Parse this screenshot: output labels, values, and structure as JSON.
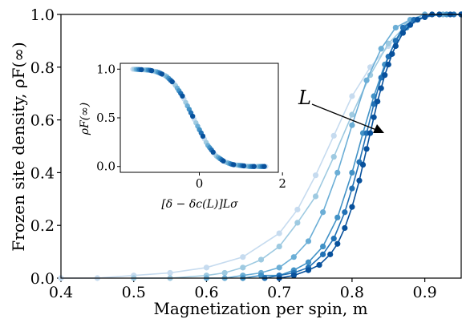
{
  "chart_data": [
    {
      "type": "line",
      "role": "main",
      "xlabel": "Magnetization per spin, m",
      "ylabel": "Frozen site density, ρF(∞)",
      "xlim": [
        0.4,
        0.95
      ],
      "ylim": [
        0.0,
        1.0
      ],
      "x_ticks": [
        "0.4",
        "0.5",
        "0.6",
        "0.7",
        "0.8",
        "0.9"
      ],
      "y_ticks": [
        "0.0",
        "0.2",
        "0.4",
        "0.6",
        "0.8",
        "1.0"
      ],
      "annotation": "L",
      "grid": false,
      "legend": "none",
      "series": [
        {
          "color": "#c6dbef",
          "x": [
            0.4,
            0.45,
            0.5,
            0.55,
            0.6,
            0.65,
            0.7,
            0.725,
            0.75,
            0.775,
            0.8,
            0.825,
            0.85,
            0.875,
            0.9,
            0.925,
            0.95
          ],
          "y": [
            0.0,
            0.0,
            0.01,
            0.02,
            0.04,
            0.08,
            0.17,
            0.26,
            0.39,
            0.54,
            0.69,
            0.8,
            0.88,
            0.95,
            0.99,
            1.0,
            1.0
          ]
        },
        {
          "color": "#9ecae1",
          "x": [
            0.5,
            0.55,
            0.6,
            0.625,
            0.65,
            0.675,
            0.7,
            0.725,
            0.75,
            0.775,
            0.8,
            0.825,
            0.85,
            0.875,
            0.9,
            0.925,
            0.95
          ],
          "y": [
            0.0,
            0.0,
            0.01,
            0.02,
            0.04,
            0.07,
            0.12,
            0.21,
            0.31,
            0.46,
            0.62,
            0.77,
            0.89,
            0.96,
            0.99,
            1.0,
            1.0
          ]
        },
        {
          "color": "#6baed6",
          "x": [
            0.6,
            0.625,
            0.65,
            0.675,
            0.7,
            0.72,
            0.74,
            0.76,
            0.78,
            0.8,
            0.82,
            0.84,
            0.86,
            0.88,
            0.9,
            0.925,
            0.95
          ],
          "y": [
            0.0,
            0.0,
            0.01,
            0.02,
            0.04,
            0.08,
            0.14,
            0.25,
            0.4,
            0.58,
            0.75,
            0.87,
            0.95,
            0.98,
            1.0,
            1.0,
            1.0
          ]
        },
        {
          "color": "#4292c6",
          "x": [
            0.65,
            0.675,
            0.7,
            0.72,
            0.74,
            0.76,
            0.78,
            0.8,
            0.815,
            0.83,
            0.845,
            0.86,
            0.875,
            0.89,
            0.91,
            0.93,
            0.95
          ],
          "y": [
            0.0,
            0.01,
            0.01,
            0.03,
            0.06,
            0.12,
            0.23,
            0.4,
            0.55,
            0.69,
            0.81,
            0.9,
            0.95,
            0.98,
            1.0,
            1.0,
            1.0
          ]
        },
        {
          "color": "#2171b5",
          "x": [
            0.68,
            0.7,
            0.72,
            0.74,
            0.76,
            0.775,
            0.79,
            0.8,
            0.81,
            0.82,
            0.83,
            0.84,
            0.85,
            0.86,
            0.87,
            0.885,
            0.9,
            0.92,
            0.94,
            0.95
          ],
          "y": [
            0.0,
            0.01,
            0.02,
            0.04,
            0.09,
            0.15,
            0.25,
            0.34,
            0.44,
            0.55,
            0.66,
            0.76,
            0.84,
            0.9,
            0.95,
            0.98,
            0.99,
            1.0,
            1.0,
            1.0
          ]
        },
        {
          "color": "#08519c",
          "x": [
            0.7,
            0.72,
            0.74,
            0.755,
            0.77,
            0.78,
            0.79,
            0.8,
            0.81,
            0.815,
            0.82,
            0.825,
            0.83,
            0.835,
            0.84,
            0.845,
            0.85,
            0.855,
            0.86,
            0.87,
            0.88,
            0.89,
            0.9,
            0.91,
            0.92,
            0.935,
            0.95
          ],
          "y": [
            0.0,
            0.01,
            0.03,
            0.05,
            0.09,
            0.13,
            0.19,
            0.27,
            0.37,
            0.43,
            0.49,
            0.55,
            0.61,
            0.67,
            0.72,
            0.77,
            0.81,
            0.85,
            0.88,
            0.93,
            0.96,
            0.98,
            0.99,
            1.0,
            1.0,
            1.0,
            1.0
          ]
        }
      ]
    },
    {
      "type": "scatter",
      "role": "inset",
      "xlabel": "[δ − δc(L)]Lσ",
      "ylabel": "ρF(∞)",
      "xlim": [
        -1.9,
        1.9
      ],
      "ylim": [
        -0.06,
        1.06
      ],
      "x_ticks": [
        "0",
        "2"
      ],
      "y_ticks": [
        "0.0",
        "0.5",
        "1.0"
      ],
      "collapse_curve": {
        "x": [
          -1.6,
          -1.2,
          -1.0,
          -0.8,
          -0.6,
          -0.4,
          -0.2,
          0.0,
          0.2,
          0.4,
          0.6,
          0.8,
          1.0,
          1.2,
          1.6
        ],
        "y": [
          1.0,
          0.99,
          0.97,
          0.93,
          0.85,
          0.72,
          0.55,
          0.38,
          0.22,
          0.11,
          0.05,
          0.02,
          0.01,
          0.0,
          0.0
        ]
      }
    }
  ]
}
